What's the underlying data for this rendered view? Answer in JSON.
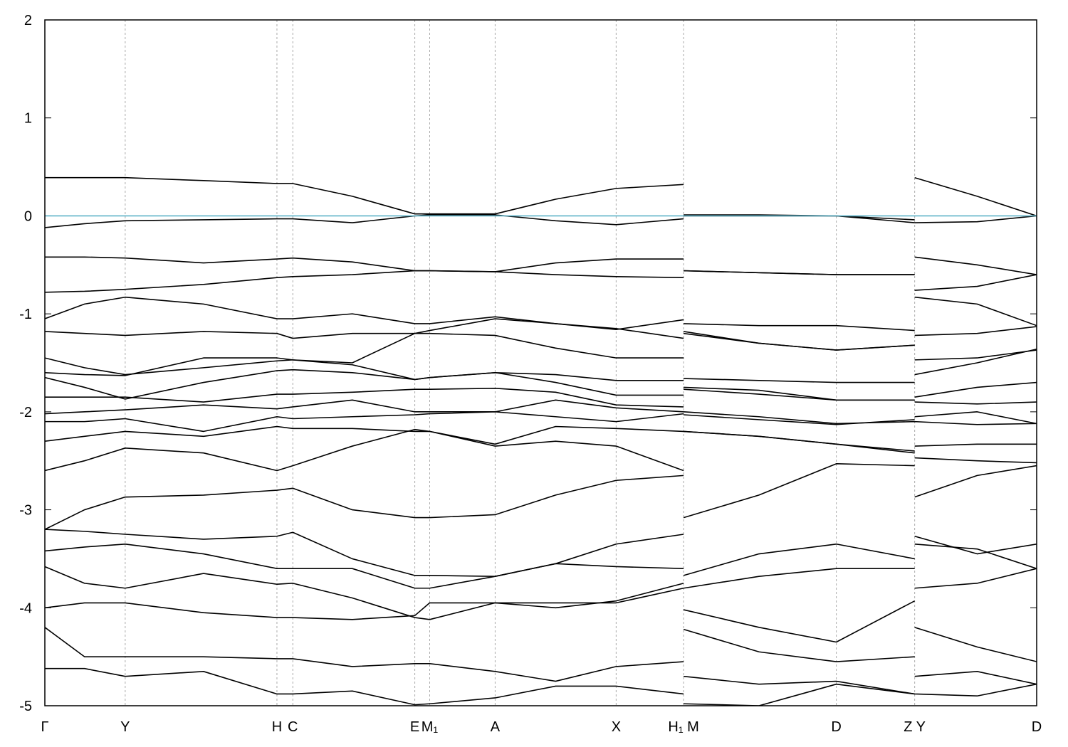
{
  "chart_data": {
    "type": "line",
    "x": [
      0,
      0.04,
      0.081,
      0.16,
      0.234,
      0.25,
      0.31,
      0.373,
      0.388,
      0.454,
      0.515,
      0.576,
      0.644,
      0.644,
      0.644,
      0.72,
      0.798,
      0.877,
      0.877,
      0.877,
      0.94,
      1
    ],
    "xlim": [
      0,
      1
    ],
    "xticks": [
      {
        "value": 0,
        "label": "Γ"
      },
      {
        "value": 0.081,
        "label": "Y"
      },
      {
        "value": 0.234,
        "label": "H"
      },
      {
        "value": 0.25,
        "label": "C"
      },
      {
        "value": 0.373,
        "label": "E"
      },
      {
        "value": 0.388,
        "label": "M₁"
      },
      {
        "value": 0.454,
        "label": "A"
      },
      {
        "value": 0.576,
        "label": "X"
      },
      {
        "value": 0.644,
        "label": "H₁ M"
      },
      {
        "value": 0.798,
        "label": "D"
      },
      {
        "value": 0.877,
        "label": "Z Y"
      },
      {
        "value": 1,
        "label": "D"
      }
    ],
    "ylim": [
      -5,
      2
    ],
    "yticks": [
      -5,
      -4,
      -3,
      -2,
      -1,
      0,
      1,
      2
    ],
    "xgrid": true,
    "line_color": "#000000",
    "fermi_level": 0,
    "fermi_color": "#5fb3c8",
    "series": [
      {
        "values": [
          0.39,
          0.39,
          0.39,
          0.36,
          0.33,
          0.33,
          0.2,
          0.02,
          0.02,
          0.02,
          0.17,
          0.28,
          0.32,
          null,
          0.01,
          0.01,
          0.0,
          -0.07,
          null,
          0.39,
          0.2,
          0.0
        ]
      },
      {
        "values": [
          -0.12,
          -0.08,
          -0.05,
          -0.04,
          -0.03,
          -0.03,
          -0.07,
          0.0,
          0.01,
          0.01,
          -0.05,
          -0.09,
          -0.03,
          null,
          0.0,
          0.0,
          0.0,
          -0.04,
          null,
          -0.07,
          -0.06,
          0.0
        ]
      },
      {
        "values": [
          -0.42,
          -0.42,
          -0.43,
          -0.48,
          -0.44,
          -0.43,
          -0.47,
          -0.56,
          -0.56,
          -0.57,
          -0.48,
          -0.44,
          -0.44,
          null,
          -0.56,
          -0.58,
          -0.6,
          -0.6,
          null,
          -0.42,
          -0.5,
          -0.6
        ]
      },
      {
        "values": [
          -0.78,
          -0.77,
          -0.75,
          -0.7,
          -0.63,
          -0.62,
          -0.6,
          -0.56,
          -0.56,
          -0.57,
          -0.6,
          -0.62,
          -0.63,
          null,
          -0.56,
          -0.58,
          -0.6,
          -0.6,
          null,
          -0.76,
          -0.72,
          -0.6
        ]
      },
      {
        "values": [
          -1.05,
          -0.9,
          -0.83,
          -0.9,
          -1.05,
          -1.05,
          -1.0,
          -1.1,
          -1.1,
          -1.03,
          -1.1,
          -1.16,
          -1.06,
          null,
          -1.1,
          -1.12,
          -1.12,
          -1.17,
          null,
          -0.83,
          -0.9,
          -1.12
        ]
      },
      {
        "values": [
          -1.18,
          -1.2,
          -1.22,
          -1.18,
          -1.2,
          -1.25,
          -1.2,
          -1.2,
          -1.2,
          -1.22,
          -1.35,
          -1.45,
          -1.45,
          null,
          -1.18,
          -1.3,
          -1.37,
          -1.32,
          null,
          -1.22,
          -1.2,
          -1.13
        ]
      },
      {
        "values": [
          -1.45,
          -1.55,
          -1.62,
          -1.55,
          -1.48,
          -1.47,
          -1.5,
          -1.2,
          -1.17,
          -1.05,
          -1.1,
          -1.15,
          -1.25,
          null,
          -1.2,
          -1.3,
          -1.37,
          -1.32,
          null,
          -1.47,
          -1.45,
          -1.37
        ]
      },
      {
        "values": [
          -1.6,
          -1.62,
          -1.63,
          -1.45,
          -1.45,
          -1.47,
          -1.52,
          -1.67,
          -1.65,
          -1.6,
          -1.62,
          -1.68,
          -1.68,
          null,
          -1.66,
          -1.68,
          -1.7,
          -1.7,
          null,
          -1.62,
          -1.5,
          -1.36
        ]
      },
      {
        "values": [
          -1.65,
          -1.75,
          -1.87,
          -1.7,
          -1.58,
          -1.57,
          -1.6,
          -1.67,
          -1.65,
          -1.6,
          -1.7,
          -1.83,
          -1.83,
          null,
          -1.75,
          -1.78,
          -1.88,
          -1.88,
          null,
          -1.85,
          -1.75,
          -1.7
        ]
      },
      {
        "values": [
          -1.85,
          -1.85,
          -1.85,
          -1.9,
          -1.82,
          -1.82,
          -1.8,
          -1.77,
          -1.77,
          -1.76,
          -1.8,
          -1.93,
          -1.95,
          null,
          -1.77,
          -1.82,
          -1.88,
          -1.88,
          null,
          -1.9,
          -1.92,
          -1.9
        ]
      },
      {
        "values": [
          -2.02,
          -2.0,
          -1.98,
          -1.93,
          -1.97,
          -1.95,
          -1.88,
          -2.0,
          -2.0,
          -2.0,
          -1.88,
          -1.96,
          -2.0,
          null,
          -2.03,
          -2.08,
          -2.13,
          -2.08,
          null,
          -2.05,
          -2.0,
          -2.12
        ]
      },
      {
        "values": [
          -2.1,
          -2.1,
          -2.07,
          -2.2,
          -2.05,
          -2.07,
          -2.05,
          -2.03,
          -2.02,
          -2.0,
          -2.05,
          -2.1,
          -2.02,
          null,
          -2.0,
          -2.05,
          -2.12,
          -2.1,
          null,
          -2.1,
          -2.13,
          -2.12
        ]
      },
      {
        "values": [
          -2.3,
          -2.25,
          -2.2,
          -2.25,
          -2.15,
          -2.17,
          -2.17,
          -2.2,
          -2.2,
          -2.33,
          -2.15,
          -2.17,
          -2.2,
          null,
          -2.2,
          -2.25,
          -2.33,
          -2.42,
          null,
          -2.35,
          -2.33,
          -2.33
        ]
      },
      {
        "values": [
          -2.6,
          -2.5,
          -2.37,
          -2.42,
          -2.6,
          -2.55,
          -2.35,
          -2.18,
          -2.2,
          -2.35,
          -2.3,
          -2.35,
          -2.6,
          null,
          -2.2,
          -2.25,
          -2.33,
          -2.4,
          null,
          -2.47,
          -2.5,
          -2.52
        ]
      },
      {
        "values": [
          -3.2,
          -3.0,
          -2.87,
          -2.85,
          -2.8,
          -2.78,
          -3.0,
          -3.08,
          -3.08,
          -3.05,
          -2.85,
          -2.7,
          -2.65,
          null,
          -3.08,
          -2.85,
          -2.53,
          -2.55,
          null,
          -2.87,
          -2.65,
          -2.55
        ]
      },
      {
        "values": [
          -3.2,
          -3.22,
          -3.25,
          -3.3,
          -3.27,
          -3.23,
          -3.5,
          -3.67,
          -3.67,
          -3.68,
          -3.55,
          -3.35,
          -3.25,
          null,
          -3.67,
          -3.45,
          -3.35,
          -3.5,
          null,
          -3.27,
          -3.45,
          -3.35
        ]
      },
      {
        "values": [
          -3.42,
          -3.38,
          -3.35,
          -3.45,
          -3.6,
          -3.6,
          -3.6,
          -3.8,
          -3.8,
          -3.68,
          -3.55,
          -3.58,
          -3.6,
          null,
          -3.8,
          -3.68,
          -3.6,
          -3.6,
          null,
          -3.35,
          -3.4,
          -3.6
        ]
      },
      {
        "values": [
          -3.58,
          -3.75,
          -3.8,
          -3.65,
          -3.76,
          -3.75,
          -3.9,
          -4.1,
          -4.12,
          -3.95,
          -3.95,
          -3.95,
          -3.8,
          null,
          -4.02,
          -4.2,
          -4.35,
          -3.93,
          null,
          -3.8,
          -3.75,
          -3.6
        ]
      },
      {
        "values": [
          -4.0,
          -3.95,
          -3.95,
          -4.05,
          -4.1,
          -4.1,
          -4.12,
          -4.08,
          -3.95,
          -3.95,
          -4.0,
          -3.93,
          -3.75,
          null,
          -4.22,
          -4.45,
          -4.55,
          -4.5,
          null,
          -4.2,
          -4.4,
          -4.55
        ]
      },
      {
        "values": [
          -4.2,
          -4.5,
          -4.5,
          -4.5,
          -4.52,
          -4.52,
          -4.6,
          -4.57,
          -4.57,
          -4.65,
          -4.75,
          -4.6,
          -4.55,
          null,
          -4.7,
          -4.78,
          -4.75,
          -4.88,
          null,
          -4.7,
          -4.65,
          -4.78
        ]
      },
      {
        "values": [
          -4.62,
          -4.62,
          -4.7,
          -4.65,
          -4.88,
          -4.88,
          -4.85,
          -4.99,
          -4.98,
          -4.92,
          -4.8,
          -4.8,
          -4.88,
          null,
          -4.98,
          -5.0,
          -4.78,
          -4.88,
          null,
          -4.88,
          -4.9,
          -4.78
        ]
      }
    ]
  }
}
